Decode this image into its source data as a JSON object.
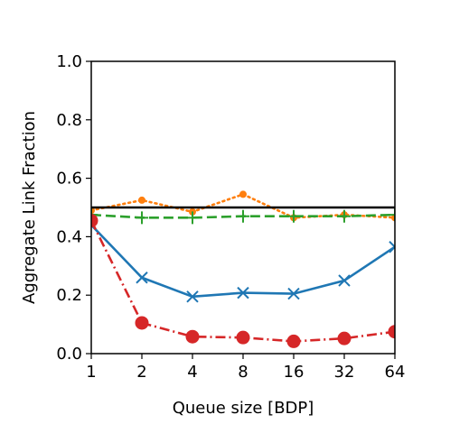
{
  "chart_data": {
    "type": "line",
    "title": "",
    "xlabel": "Queue size [BDP]",
    "ylabel": "Aggregate Link Fraction",
    "x_scale": "log2",
    "categories": [
      "1",
      "2",
      "4",
      "8",
      "16",
      "32",
      "64"
    ],
    "x": [
      1,
      2,
      4,
      8,
      16,
      32,
      64
    ],
    "xlim": [
      1,
      64
    ],
    "ylim": [
      0.0,
      1.0
    ],
    "yticks": [
      "0.0",
      "0.2",
      "0.4",
      "0.6",
      "0.8",
      "1.0"
    ],
    "ytick_values": [
      0.0,
      0.2,
      0.4,
      0.6,
      0.8,
      1.0
    ],
    "grid": false,
    "reference_line": {
      "y": 0.5,
      "color": "#000000"
    },
    "series": [
      {
        "color": "#1f77b4",
        "line": "solid",
        "marker": "x",
        "values": [
          0.44,
          0.26,
          0.195,
          0.208,
          0.205,
          0.25,
          0.365
        ]
      },
      {
        "color": "#ff7f0e",
        "line": "dotted",
        "marker": "dot",
        "values": [
          0.49,
          0.525,
          0.485,
          0.545,
          0.465,
          0.475,
          0.465
        ]
      },
      {
        "color": "#2ca02c",
        "line": "dashed",
        "marker": "plus",
        "values": [
          0.475,
          0.465,
          0.465,
          0.47,
          0.47,
          0.47,
          0.475
        ]
      },
      {
        "color": "#d62728",
        "line": "dashdot",
        "marker": "circle",
        "values": [
          0.455,
          0.105,
          0.058,
          0.055,
          0.042,
          0.052,
          0.075
        ]
      }
    ]
  }
}
